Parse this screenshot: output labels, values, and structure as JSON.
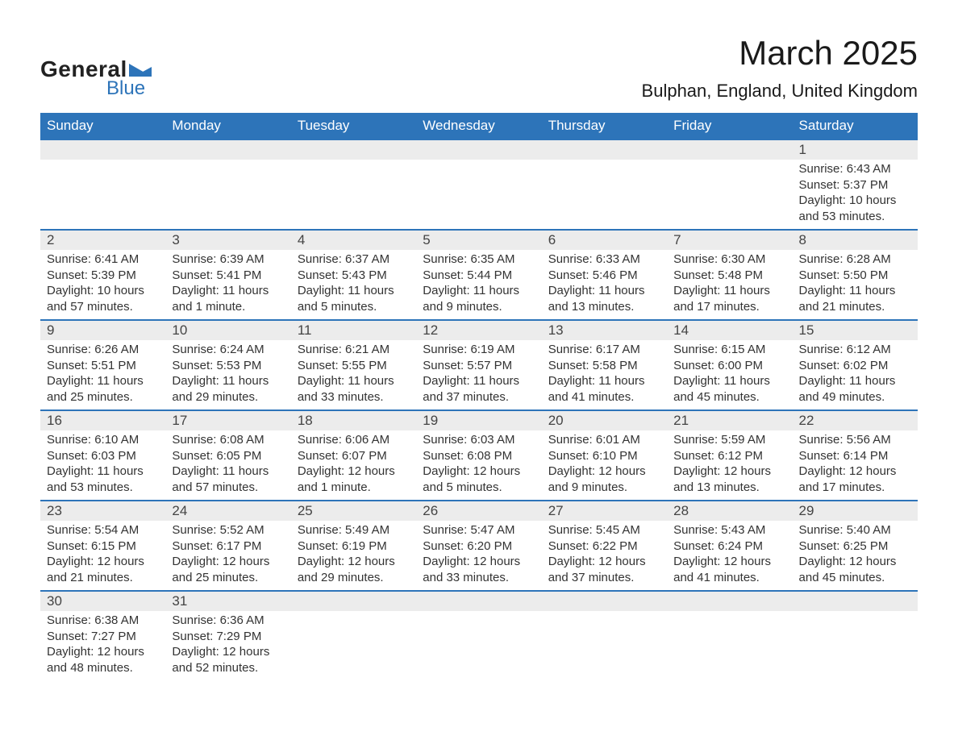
{
  "brand": {
    "word1": "General",
    "word2": "Blue",
    "triangle_color": "#2d74b9"
  },
  "title": "March 2025",
  "location": "Bulphan, England, United Kingdom",
  "colors": {
    "header_bg": "#2d74b9",
    "header_text": "#ffffff",
    "daynum_bg": "#ececec",
    "row_border": "#2d74b9",
    "body_text": "#333333",
    "page_bg": "#ffffff"
  },
  "fonts": {
    "title_size_pt": 32,
    "location_size_pt": 17,
    "header_size_pt": 13,
    "daynum_size_pt": 13,
    "detail_size_pt": 11
  },
  "day_headers": [
    "Sunday",
    "Monday",
    "Tuesday",
    "Wednesday",
    "Thursday",
    "Friday",
    "Saturday"
  ],
  "weeks": [
    [
      null,
      null,
      null,
      null,
      null,
      null,
      {
        "n": "1",
        "sr": "Sunrise: 6:43 AM",
        "ss": "Sunset: 5:37 PM",
        "dl": "Daylight: 10 hours and 53 minutes."
      }
    ],
    [
      {
        "n": "2",
        "sr": "Sunrise: 6:41 AM",
        "ss": "Sunset: 5:39 PM",
        "dl": "Daylight: 10 hours and 57 minutes."
      },
      {
        "n": "3",
        "sr": "Sunrise: 6:39 AM",
        "ss": "Sunset: 5:41 PM",
        "dl": "Daylight: 11 hours and 1 minute."
      },
      {
        "n": "4",
        "sr": "Sunrise: 6:37 AM",
        "ss": "Sunset: 5:43 PM",
        "dl": "Daylight: 11 hours and 5 minutes."
      },
      {
        "n": "5",
        "sr": "Sunrise: 6:35 AM",
        "ss": "Sunset: 5:44 PM",
        "dl": "Daylight: 11 hours and 9 minutes."
      },
      {
        "n": "6",
        "sr": "Sunrise: 6:33 AM",
        "ss": "Sunset: 5:46 PM",
        "dl": "Daylight: 11 hours and 13 minutes."
      },
      {
        "n": "7",
        "sr": "Sunrise: 6:30 AM",
        "ss": "Sunset: 5:48 PM",
        "dl": "Daylight: 11 hours and 17 minutes."
      },
      {
        "n": "8",
        "sr": "Sunrise: 6:28 AM",
        "ss": "Sunset: 5:50 PM",
        "dl": "Daylight: 11 hours and 21 minutes."
      }
    ],
    [
      {
        "n": "9",
        "sr": "Sunrise: 6:26 AM",
        "ss": "Sunset: 5:51 PM",
        "dl": "Daylight: 11 hours and 25 minutes."
      },
      {
        "n": "10",
        "sr": "Sunrise: 6:24 AM",
        "ss": "Sunset: 5:53 PM",
        "dl": "Daylight: 11 hours and 29 minutes."
      },
      {
        "n": "11",
        "sr": "Sunrise: 6:21 AM",
        "ss": "Sunset: 5:55 PM",
        "dl": "Daylight: 11 hours and 33 minutes."
      },
      {
        "n": "12",
        "sr": "Sunrise: 6:19 AM",
        "ss": "Sunset: 5:57 PM",
        "dl": "Daylight: 11 hours and 37 minutes."
      },
      {
        "n": "13",
        "sr": "Sunrise: 6:17 AM",
        "ss": "Sunset: 5:58 PM",
        "dl": "Daylight: 11 hours and 41 minutes."
      },
      {
        "n": "14",
        "sr": "Sunrise: 6:15 AM",
        "ss": "Sunset: 6:00 PM",
        "dl": "Daylight: 11 hours and 45 minutes."
      },
      {
        "n": "15",
        "sr": "Sunrise: 6:12 AM",
        "ss": "Sunset: 6:02 PM",
        "dl": "Daylight: 11 hours and 49 minutes."
      }
    ],
    [
      {
        "n": "16",
        "sr": "Sunrise: 6:10 AM",
        "ss": "Sunset: 6:03 PM",
        "dl": "Daylight: 11 hours and 53 minutes."
      },
      {
        "n": "17",
        "sr": "Sunrise: 6:08 AM",
        "ss": "Sunset: 6:05 PM",
        "dl": "Daylight: 11 hours and 57 minutes."
      },
      {
        "n": "18",
        "sr": "Sunrise: 6:06 AM",
        "ss": "Sunset: 6:07 PM",
        "dl": "Daylight: 12 hours and 1 minute."
      },
      {
        "n": "19",
        "sr": "Sunrise: 6:03 AM",
        "ss": "Sunset: 6:08 PM",
        "dl": "Daylight: 12 hours and 5 minutes."
      },
      {
        "n": "20",
        "sr": "Sunrise: 6:01 AM",
        "ss": "Sunset: 6:10 PM",
        "dl": "Daylight: 12 hours and 9 minutes."
      },
      {
        "n": "21",
        "sr": "Sunrise: 5:59 AM",
        "ss": "Sunset: 6:12 PM",
        "dl": "Daylight: 12 hours and 13 minutes."
      },
      {
        "n": "22",
        "sr": "Sunrise: 5:56 AM",
        "ss": "Sunset: 6:14 PM",
        "dl": "Daylight: 12 hours and 17 minutes."
      }
    ],
    [
      {
        "n": "23",
        "sr": "Sunrise: 5:54 AM",
        "ss": "Sunset: 6:15 PM",
        "dl": "Daylight: 12 hours and 21 minutes."
      },
      {
        "n": "24",
        "sr": "Sunrise: 5:52 AM",
        "ss": "Sunset: 6:17 PM",
        "dl": "Daylight: 12 hours and 25 minutes."
      },
      {
        "n": "25",
        "sr": "Sunrise: 5:49 AM",
        "ss": "Sunset: 6:19 PM",
        "dl": "Daylight: 12 hours and 29 minutes."
      },
      {
        "n": "26",
        "sr": "Sunrise: 5:47 AM",
        "ss": "Sunset: 6:20 PM",
        "dl": "Daylight: 12 hours and 33 minutes."
      },
      {
        "n": "27",
        "sr": "Sunrise: 5:45 AM",
        "ss": "Sunset: 6:22 PM",
        "dl": "Daylight: 12 hours and 37 minutes."
      },
      {
        "n": "28",
        "sr": "Sunrise: 5:43 AM",
        "ss": "Sunset: 6:24 PM",
        "dl": "Daylight: 12 hours and 41 minutes."
      },
      {
        "n": "29",
        "sr": "Sunrise: 5:40 AM",
        "ss": "Sunset: 6:25 PM",
        "dl": "Daylight: 12 hours and 45 minutes."
      }
    ],
    [
      {
        "n": "30",
        "sr": "Sunrise: 6:38 AM",
        "ss": "Sunset: 7:27 PM",
        "dl": "Daylight: 12 hours and 48 minutes."
      },
      {
        "n": "31",
        "sr": "Sunrise: 6:36 AM",
        "ss": "Sunset: 7:29 PM",
        "dl": "Daylight: 12 hours and 52 minutes."
      },
      null,
      null,
      null,
      null,
      null
    ]
  ]
}
